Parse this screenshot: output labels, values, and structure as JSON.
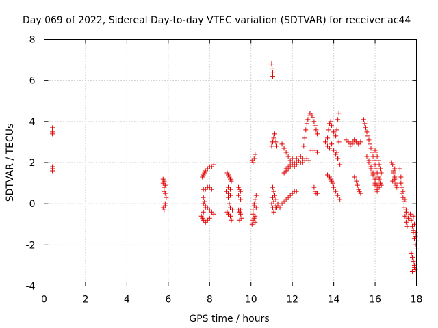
{
  "chart_data": {
    "type": "scatter",
    "title": "Day 069 of 2022, Sidereal Day-to-day VTEC variation (SDTVAR) for receiver ac44",
    "xlabel": "GPS time / hours",
    "ylabel": "SDTVAR / TECUs",
    "xlim": [
      0,
      18
    ],
    "ylim": [
      -4,
      8
    ],
    "xticks": [
      "0",
      "2",
      "4",
      "6",
      "8",
      "10",
      "12",
      "14",
      "16",
      "18"
    ],
    "yticks": [
      "-4",
      "-2",
      "0",
      "2",
      "4",
      "6",
      "8"
    ],
    "grid": true,
    "marker": "+",
    "color": "#e00000",
    "series": [
      {
        "name": "SDTVAR",
        "x": [
          0.4,
          0.4,
          0.4,
          0.4,
          0.4,
          0.4,
          5.75,
          5.75,
          5.8,
          5.8,
          5.8,
          5.85,
          5.85,
          5.9,
          5.8,
          5.75,
          5.85,
          5.85,
          7.65,
          7.7,
          7.75,
          7.8,
          7.9,
          8.0,
          8.1,
          8.2,
          7.7,
          7.8,
          7.9,
          8.0,
          8.1,
          7.7,
          7.75,
          7.8,
          7.9,
          8.0,
          8.1,
          8.2,
          7.6,
          7.65,
          7.7,
          7.8,
          7.9,
          8.0,
          7.7,
          7.8,
          7.7,
          8.85,
          8.9,
          8.95,
          9.0,
          9.05,
          8.9,
          9.0,
          8.9,
          8.95,
          9.0,
          9.1,
          8.85,
          8.9,
          9.0,
          9.05,
          8.8,
          8.9,
          9.0,
          9.4,
          9.45,
          9.5,
          9.4,
          9.45,
          9.5,
          9.55,
          9.45,
          9.5,
          9.4,
          9.5,
          10.05,
          10.1,
          10.15,
          10.2,
          10.1,
          10.15,
          10.2,
          10.1,
          10.15,
          10.2,
          10.25,
          10.05,
          10.1,
          10.2,
          10.15,
          10.25,
          11.0,
          11.02,
          11.05,
          11.05,
          11.0,
          11.05,
          11.1,
          11.15,
          11.2,
          11.25,
          11.05,
          11.1,
          11.15,
          11.2,
          11.0,
          11.05,
          11.1,
          11.2,
          11.3,
          11.05,
          11.1,
          11.2,
          11.25,
          11.3,
          11.5,
          11.6,
          11.7,
          11.8,
          11.9,
          12.0,
          12.1,
          12.2,
          12.3,
          12.4,
          12.5,
          12.6,
          12.7,
          12.8,
          11.6,
          11.7,
          11.8,
          11.9,
          12.0,
          12.1,
          12.2,
          12.3,
          11.7,
          11.8,
          11.9,
          12.0,
          12.1,
          12.2,
          11.4,
          11.5,
          11.6,
          11.7,
          11.8,
          11.9,
          12.0,
          12.1,
          12.2,
          12.4,
          12.5,
          12.55,
          12.6,
          12.65,
          12.7,
          12.75,
          12.8,
          12.85,
          12.9,
          12.95,
          13.0,
          13.05,
          13.1,
          13.15,
          13.2,
          12.9,
          13.0,
          13.1,
          13.2,
          13.05,
          13.1,
          13.15,
          13.2,
          13.6,
          13.7,
          13.75,
          13.8,
          13.85,
          13.9,
          14.0,
          14.1,
          14.15,
          14.2,
          14.25,
          13.7,
          13.8,
          13.9,
          14.0,
          14.1,
          14.2,
          13.7,
          13.8,
          13.85,
          13.9,
          13.95,
          14.0,
          14.1,
          14.2,
          14.3,
          14.15,
          14.2,
          14.3,
          14.25,
          14.6,
          14.7,
          14.8,
          14.9,
          15.0,
          15.1,
          15.2,
          15.3,
          14.7,
          14.8,
          14.9,
          15.0,
          15.1,
          15.2,
          15.0,
          15.1,
          15.15,
          15.2,
          15.25,
          15.3,
          15.45,
          15.5,
          15.55,
          15.6,
          15.65,
          15.7,
          15.75,
          15.8,
          15.85,
          15.9,
          15.95,
          16.0,
          16.05,
          16.1,
          16.15,
          16.2,
          16.25,
          16.3,
          15.6,
          15.7,
          15.8,
          15.9,
          16.0,
          16.1,
          16.2,
          15.7,
          15.8,
          15.9,
          16.0,
          16.1,
          16.0,
          16.05,
          16.1,
          16.15,
          16.2,
          16.25,
          16.3,
          16.0,
          16.05,
          16.1,
          16.8,
          16.85,
          16.9,
          16.95,
          17.0,
          17.05,
          16.9,
          16.95,
          17.0,
          16.85,
          16.95,
          17.2,
          17.25,
          17.3,
          17.35,
          17.4,
          17.45,
          17.5,
          17.55,
          17.6,
          17.3,
          17.4,
          17.5,
          17.25,
          17.35,
          17.45,
          17.5,
          17.7,
          17.75,
          17.8,
          17.85,
          17.9,
          17.95,
          18.0,
          17.8,
          17.85,
          17.9,
          17.95,
          17.75,
          17.85,
          17.9,
          17.95,
          18.0,
          17.8,
          17.9,
          17.85,
          17.95
        ],
        "y": [
          3.7,
          3.5,
          3.4,
          1.8,
          1.7,
          1.6,
          1.2,
          1.0,
          0.8,
          0.6,
          1.1,
          0.9,
          0.5,
          0.3,
          -0.3,
          -0.2,
          -0.1,
          0.0,
          1.3,
          1.4,
          1.5,
          1.6,
          1.7,
          1.8,
          1.8,
          1.9,
          0.7,
          0.7,
          0.8,
          0.8,
          0.7,
          0.3,
          0.1,
          -0.1,
          -0.2,
          -0.3,
          -0.4,
          -0.5,
          -0.6,
          -0.7,
          -0.8,
          -0.9,
          -0.8,
          -0.7,
          -0.4,
          -0.2,
          0.0,
          1.5,
          1.4,
          1.3,
          1.2,
          1.1,
          0.8,
          0.7,
          0.3,
          0.0,
          -0.2,
          -0.3,
          -0.4,
          -0.5,
          -0.6,
          -0.8,
          0.6,
          0.5,
          0.4,
          0.8,
          0.7,
          0.6,
          -0.3,
          -0.4,
          -0.5,
          -0.7,
          -0.8,
          -0.3,
          0.4,
          0.2,
          2.1,
          2.0,
          2.2,
          2.4,
          -0.5,
          -0.7,
          -0.9,
          -0.3,
          -0.1,
          0.2,
          0.4,
          -1.0,
          -0.8,
          -0.6,
          0.0,
          -0.2,
          6.8,
          6.6,
          6.4,
          6.2,
          2.8,
          3.0,
          3.2,
          3.4,
          3.0,
          2.8,
          0.8,
          0.6,
          0.4,
          0.2,
          0.0,
          -0.2,
          -0.4,
          -0.2,
          -0.1,
          0.3,
          0.1,
          -0.1,
          -0.2,
          0.0,
          2.9,
          2.7,
          2.5,
          2.3,
          2.1,
          2.2,
          2.0,
          2.2,
          2.1,
          2.3,
          2.0,
          2.1,
          2.2,
          2.1,
          1.5,
          1.7,
          1.8,
          1.9,
          2.0,
          1.9,
          2.0,
          2.1,
          1.6,
          1.7,
          1.8,
          1.9,
          1.8,
          1.9,
          -0.2,
          0.0,
          0.1,
          0.2,
          0.3,
          0.4,
          0.5,
          0.6,
          0.6,
          2.0,
          2.2,
          2.8,
          3.2,
          3.6,
          3.9,
          4.1,
          4.3,
          4.4,
          4.4,
          4.3,
          4.2,
          4.0,
          3.8,
          3.6,
          3.4,
          2.6,
          2.6,
          2.6,
          2.5,
          0.8,
          0.6,
          0.5,
          0.5,
          3.0,
          3.2,
          3.6,
          3.9,
          4.0,
          3.8,
          3.5,
          3.3,
          3.6,
          4.1,
          4.4,
          2.8,
          2.7,
          2.9,
          2.6,
          2.4,
          2.2,
          1.4,
          1.3,
          1.2,
          1.1,
          1.0,
          0.8,
          0.6,
          0.4,
          0.2,
          2.5,
          2.2,
          1.9,
          3.0,
          3.1,
          3.0,
          2.9,
          3.0,
          3.1,
          3.0,
          2.9,
          3.0,
          3.0,
          2.8,
          2.9,
          3.1,
          3.0,
          2.9,
          1.3,
          1.1,
          0.9,
          0.7,
          0.6,
          0.5,
          4.1,
          3.9,
          3.7,
          3.5,
          3.3,
          3.1,
          2.9,
          2.7,
          2.5,
          2.3,
          2.1,
          1.9,
          1.7,
          1.5,
          1.3,
          1.2,
          1.0,
          0.9,
          2.3,
          2.0,
          1.7,
          1.4,
          1.0,
          0.7,
          0.8,
          2.1,
          1.8,
          1.5,
          1.2,
          0.9,
          2.6,
          2.5,
          2.3,
          2.1,
          1.9,
          1.7,
          1.5,
          0.9,
          0.7,
          0.6,
          2.0,
          1.9,
          1.6,
          1.3,
          1.0,
          0.8,
          1.5,
          1.2,
          0.9,
          1.1,
          1.7,
          1.7,
          1.3,
          0.8,
          0.3,
          -0.2,
          -0.6,
          -0.9,
          -1.1,
          -0.7,
          0.5,
          0.1,
          -0.3,
          1.0,
          0.6,
          0.2,
          -0.4,
          -0.5,
          -0.8,
          -1.1,
          -1.4,
          -1.7,
          -2.0,
          -2.2,
          -2.6,
          -2.8,
          -3.0,
          -3.2,
          -2.4,
          -0.6,
          -1.0,
          -1.4,
          -1.8,
          -3.3,
          -3.1,
          -1.3,
          -1.6
        ]
      }
    ]
  }
}
